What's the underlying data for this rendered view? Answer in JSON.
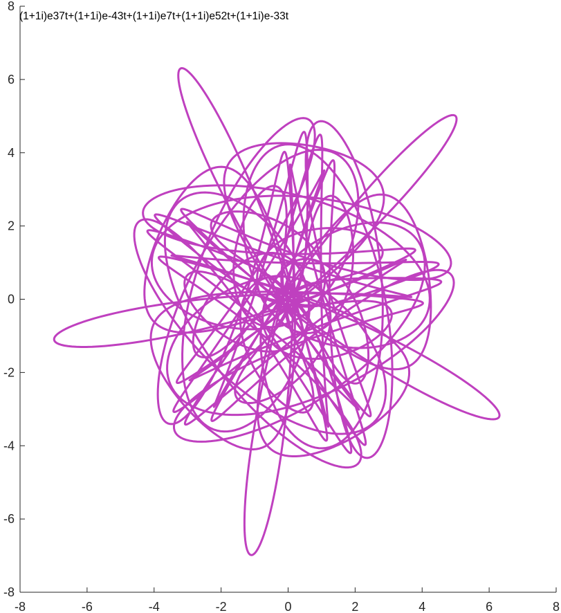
{
  "chart_data": {
    "type": "line",
    "title": "(1+1i)e37t+(1+1i)e-43t+(1+1i)e7t+(1+1i)e52t+(1+1i)e-33t",
    "xlabel": "",
    "ylabel": "",
    "xlim": [
      -8,
      8
    ],
    "ylim": [
      -8,
      8
    ],
    "xticks": [
      -8,
      -6,
      -4,
      -2,
      0,
      2,
      4,
      6,
      8
    ],
    "yticks": [
      -8,
      -6,
      -4,
      -2,
      0,
      2,
      4,
      6,
      8
    ],
    "xtick_labels": [
      "-8",
      "-6",
      "-4",
      "-2",
      "0",
      "2",
      "4",
      "6",
      "8"
    ],
    "ytick_labels": [
      "-8",
      "-6",
      "-4",
      "-2",
      "0",
      "2",
      "4",
      "6",
      "8"
    ],
    "grid": false,
    "series": [
      {
        "color": "#BF40BF",
        "parametric": {
          "t_range": [
            0,
            6.283185307179586
          ],
          "samples": 5000,
          "terms": [
            {
              "coef_re": 1,
              "coef_im": 1,
              "freq": 37
            },
            {
              "coef_re": 1,
              "coef_im": 1,
              "freq": -43
            },
            {
              "coef_re": 1,
              "coef_im": 1,
              "freq": 7
            },
            {
              "coef_re": 1,
              "coef_im": 1,
              "freq": 52
            },
            {
              "coef_re": 1,
              "coef_im": 1,
              "freq": -33
            }
          ]
        }
      }
    ]
  }
}
